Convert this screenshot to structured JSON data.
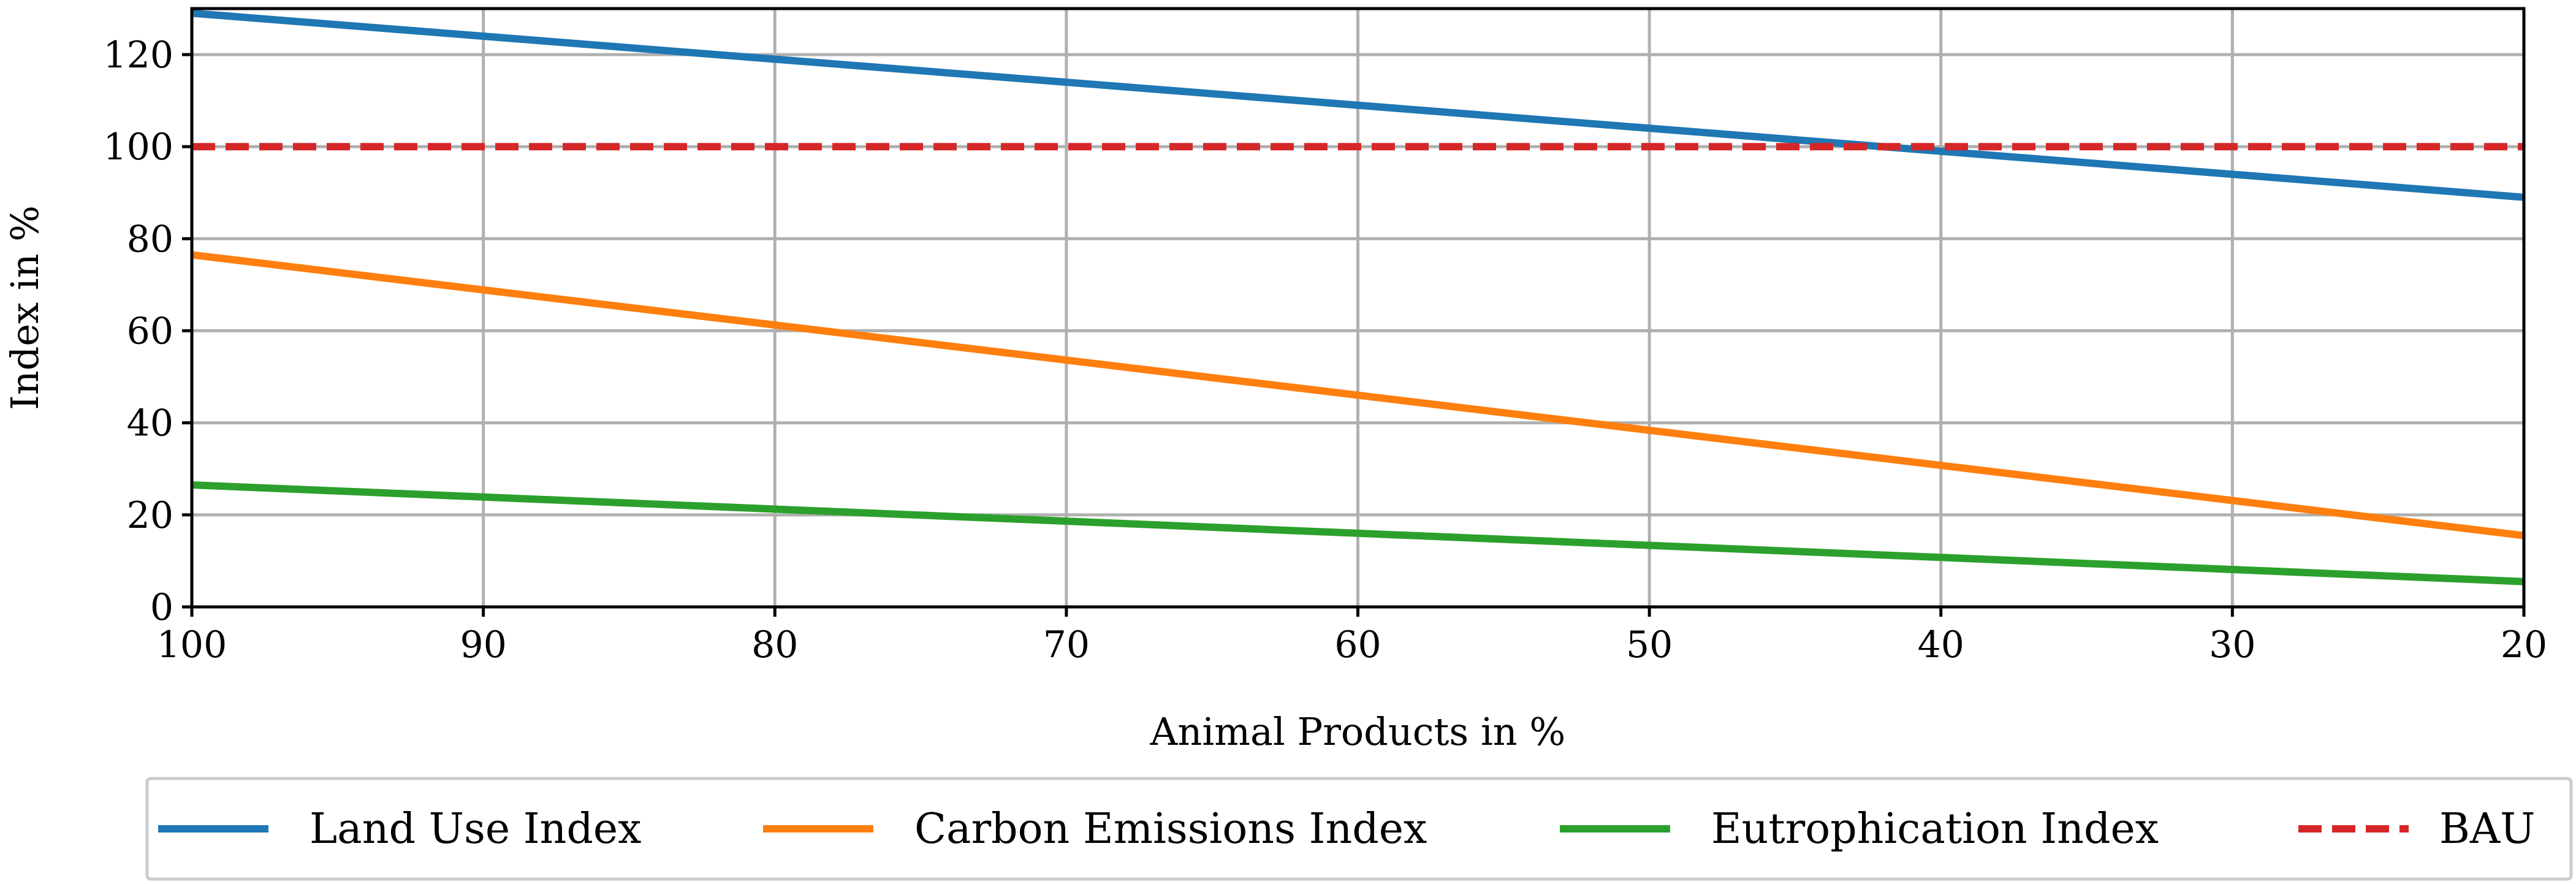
{
  "chart_data": {
    "type": "line",
    "title": "",
    "xlabel": "Animal Products in %",
    "ylabel": "Index in %",
    "xlim": [
      100,
      20
    ],
    "ylim": [
      0,
      130
    ],
    "x_inverted": true,
    "grid": true,
    "xticks": [
      100,
      90,
      80,
      70,
      60,
      50,
      40,
      30,
      20
    ],
    "yticks": [
      0,
      20,
      40,
      60,
      80,
      100,
      120
    ],
    "x": [
      100,
      20
    ],
    "series": [
      {
        "name": "Land Use Index",
        "color": "#1f77b4",
        "style": "solid",
        "values": [
          129,
          89
        ]
      },
      {
        "name": "Carbon Emissions Index",
        "color": "#ff7f0e",
        "style": "solid",
        "values": [
          76.5,
          15.5
        ]
      },
      {
        "name": "Eutrophication Index",
        "color": "#2ca02c",
        "style": "solid",
        "values": [
          26.5,
          5.5
        ]
      },
      {
        "name": "BAU",
        "color": "#d62728",
        "style": "dashed",
        "values": [
          100,
          100
        ]
      }
    ],
    "legend_position": "bottom"
  }
}
